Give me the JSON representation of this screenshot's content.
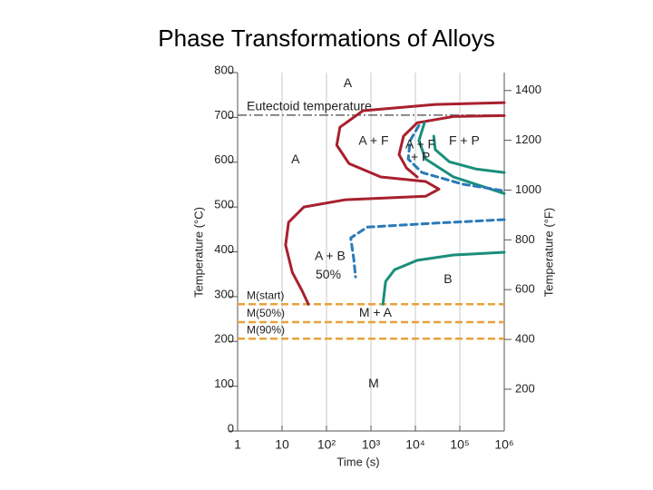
{
  "chart_data": {
    "type": "line",
    "title": "Phase Transformations of Alloys",
    "xlabel": "Time (s)",
    "ylabel": "Temperature (°C)",
    "y2label": "Temperature (°F)",
    "xscale": "log",
    "grid": "x",
    "xlim": [
      1,
      1000000
    ],
    "xticks": [
      1,
      10,
      {
        "value": 100,
        "label": "10²"
      },
      {
        "value": 1000,
        "label": "10³"
      },
      {
        "value": 10000,
        "label": "10⁴"
      },
      {
        "value": 100000,
        "label": "10⁵"
      },
      {
        "value": 1000000,
        "label": "10⁶"
      }
    ],
    "ylim": [
      0,
      800
    ],
    "yticks": [
      0,
      100,
      200,
      300,
      400,
      500,
      600,
      700,
      800
    ],
    "y2lim": [
      32,
      1472
    ],
    "y2ticks": [
      200,
      400,
      600,
      800,
      1000,
      1200,
      1400
    ],
    "hlines": [
      {
        "label": "Eutectoid temperature",
        "value": 705,
        "color": "#666666",
        "style": "dashdot"
      },
      {
        "label": "M(start)",
        "value": 283,
        "color": "#e8a23a",
        "style": "dash"
      },
      {
        "label": "M(50%)",
        "value": 243,
        "color": "#e8a23a",
        "style": "dash"
      },
      {
        "label": "M(90%)",
        "value": 206,
        "color": "#e8a23a",
        "style": "dash"
      }
    ],
    "series": [
      {
        "color": "#a8202e",
        "style": "solid",
        "x": [
          1000000,
          28000,
          660,
          200,
          170,
          320,
          1660,
          17000,
          34000,
          17000,
          260,
          31,
          14,
          12,
          17,
          28,
          39
        ],
        "values": [
          733,
          729,
          715,
          678,
          638,
          597,
          567,
          557,
          540,
          524,
          516,
          500,
          466,
          415,
          354,
          314,
          283
        ]
      },
      {
        "color": "#a8202e",
        "style": "solid",
        "x": [
          1000000,
          72000,
          11000,
          5400,
          4300,
          6300,
          11000
        ],
        "values": [
          704,
          702,
          688,
          658,
          617,
          587,
          567
        ]
      },
      {
        "color": "#1a8f7a",
        "style": "solid",
        "x": [
          16000,
          12000,
          17000,
          72000,
          300000,
          1000000
        ],
        "values": [
          688,
          648,
          607,
          567,
          547,
          530
        ]
      },
      {
        "color": "#1a8f7a",
        "style": "solid",
        "x": [
          26000,
          28000,
          58000,
          230000,
          1000000
        ],
        "values": [
          658,
          628,
          601,
          585,
          577
        ]
      },
      {
        "color": "#1a8f7a",
        "style": "solid",
        "x": [
          1860,
          2140,
          3400,
          11000,
          72000,
          1000000
        ],
        "values": [
          283,
          334,
          360,
          381,
          393,
          399
        ]
      },
      {
        "color": "#2a7ab8",
        "style": "dash",
        "x": [
          12000,
          7600,
          6900,
          14000,
          115000,
          1000000
        ],
        "values": [
          682,
          648,
          607,
          577,
          551,
          536
        ]
      },
      {
        "color": "#2a7ab8",
        "style": "dash",
        "x": [
          1000000,
          28000,
          830,
          350,
          410,
          450
        ],
        "values": [
          472,
          464,
          455,
          431,
          385,
          344
        ]
      }
    ],
    "annotations": [
      {
        "text": "A",
        "x": 300,
        "y": 775
      },
      {
        "text": "A",
        "x": 20,
        "y": 605
      },
      {
        "text": "A + F",
        "x": 1150,
        "y": 646
      },
      {
        "text": "A + F",
        "x": 13000,
        "y": 638
      },
      {
        "text": "+ P",
        "x": 13000,
        "y": 610
      },
      {
        "text": "F + P",
        "x": 126000,
        "y": 646
      },
      {
        "text": "A + B",
        "x": 120,
        "y": 389
      },
      {
        "text": "50%",
        "x": 110,
        "y": 348
      },
      {
        "text": "B",
        "x": 54000,
        "y": 338
      },
      {
        "text": "M + A",
        "x": 1260,
        "y": 263
      },
      {
        "text": "M",
        "x": 1150,
        "y": 105
      }
    ]
  }
}
